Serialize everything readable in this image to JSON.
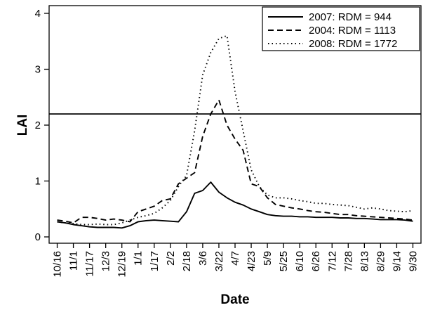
{
  "chart_data": {
    "type": "line",
    "xlabel": "Date",
    "ylabel": "LAI",
    "ylim": [
      0,
      4
    ],
    "yticks": [
      "0",
      "1",
      "2",
      "3",
      "4"
    ],
    "x_tick_labels": [
      "10/16",
      "11/1",
      "11/17",
      "12/3",
      "12/19",
      "1/1",
      "1/17",
      "2/2",
      "2/18",
      "3/6",
      "3/22",
      "4/7",
      "4/23",
      "5/9",
      "5/25",
      "6/10",
      "6/26",
      "7/12",
      "7/28",
      "8/13",
      "8/29",
      "9/14",
      "9/30"
    ],
    "x_index_range": [
      -0.5,
      22.5
    ],
    "reference_line": {
      "y": 2.2
    },
    "legend": {
      "placement": "top-right",
      "boxed": true
    },
    "grid": false,
    "series": [
      {
        "name": "2007: RDM = 944",
        "style": "solid",
        "x": [
          0,
          0.5,
          1,
          1.5,
          2,
          2.5,
          3,
          3.5,
          4,
          4.5,
          5,
          5.5,
          6,
          6.5,
          7,
          7.5,
          8,
          8.5,
          9,
          9.5,
          10,
          10.5,
          11,
          11.5,
          12,
          12.5,
          13,
          13.5,
          14,
          14.5,
          15,
          15.5,
          16,
          16.5,
          17,
          17.5,
          18,
          18.5,
          19,
          19.5,
          20,
          20.5,
          21,
          21.5,
          22
        ],
        "values": [
          0.27,
          0.25,
          0.22,
          0.2,
          0.18,
          0.17,
          0.17,
          0.17,
          0.16,
          0.2,
          0.27,
          0.29,
          0.3,
          0.29,
          0.28,
          0.27,
          0.45,
          0.78,
          0.83,
          0.98,
          0.8,
          0.7,
          0.62,
          0.57,
          0.5,
          0.45,
          0.4,
          0.38,
          0.37,
          0.37,
          0.36,
          0.36,
          0.35,
          0.35,
          0.35,
          0.34,
          0.34,
          0.33,
          0.33,
          0.32,
          0.31,
          0.31,
          0.31,
          0.3,
          0.28
        ]
      },
      {
        "name": "2004: RDM = 1113",
        "style": "dashed",
        "x": [
          0,
          0.5,
          1,
          1.5,
          2,
          2.5,
          3,
          3.5,
          4,
          4.5,
          5,
          5.5,
          6,
          6.5,
          7,
          7.5,
          8,
          8.5,
          9,
          9.5,
          10,
          10.5,
          11,
          11.5,
          12,
          12.5,
          13,
          13.5,
          14,
          14.5,
          15,
          15.5,
          16,
          16.5,
          17,
          17.5,
          18,
          18.5,
          19,
          19.5,
          20,
          20.5,
          21,
          21.5,
          22
        ],
        "values": [
          0.3,
          0.28,
          0.25,
          0.35,
          0.35,
          0.33,
          0.3,
          0.32,
          0.3,
          0.27,
          0.45,
          0.5,
          0.55,
          0.65,
          0.68,
          0.95,
          1.05,
          1.15,
          1.8,
          2.2,
          2.45,
          2.0,
          1.75,
          1.55,
          0.95,
          0.9,
          0.7,
          0.58,
          0.55,
          0.52,
          0.5,
          0.47,
          0.45,
          0.44,
          0.42,
          0.4,
          0.4,
          0.38,
          0.37,
          0.36,
          0.35,
          0.34,
          0.33,
          0.32,
          0.3
        ]
      },
      {
        "name": "2008: RDM = 1772",
        "style": "dotted",
        "x": [
          0,
          0.5,
          1,
          1.5,
          2,
          2.5,
          3,
          3.5,
          4,
          4.5,
          5,
          5.5,
          6,
          6.5,
          7,
          7.5,
          8,
          8.5,
          9,
          9.5,
          10,
          10.5,
          11,
          11.5,
          12,
          12.5,
          13,
          13.5,
          14,
          14.5,
          15,
          15.5,
          16,
          16.5,
          17,
          17.5,
          18,
          18.5,
          19,
          19.5,
          20,
          20.5,
          21,
          21.5,
          22
        ],
        "values": [
          0.27,
          0.25,
          0.24,
          0.22,
          0.22,
          0.23,
          0.22,
          0.22,
          0.25,
          0.3,
          0.35,
          0.38,
          0.42,
          0.52,
          0.65,
          0.9,
          1.1,
          1.9,
          2.9,
          3.3,
          3.55,
          3.6,
          2.6,
          1.9,
          1.2,
          0.9,
          0.75,
          0.7,
          0.7,
          0.68,
          0.65,
          0.63,
          0.6,
          0.6,
          0.58,
          0.57,
          0.56,
          0.53,
          0.5,
          0.52,
          0.5,
          0.47,
          0.46,
          0.45,
          0.47
        ]
      }
    ]
  }
}
